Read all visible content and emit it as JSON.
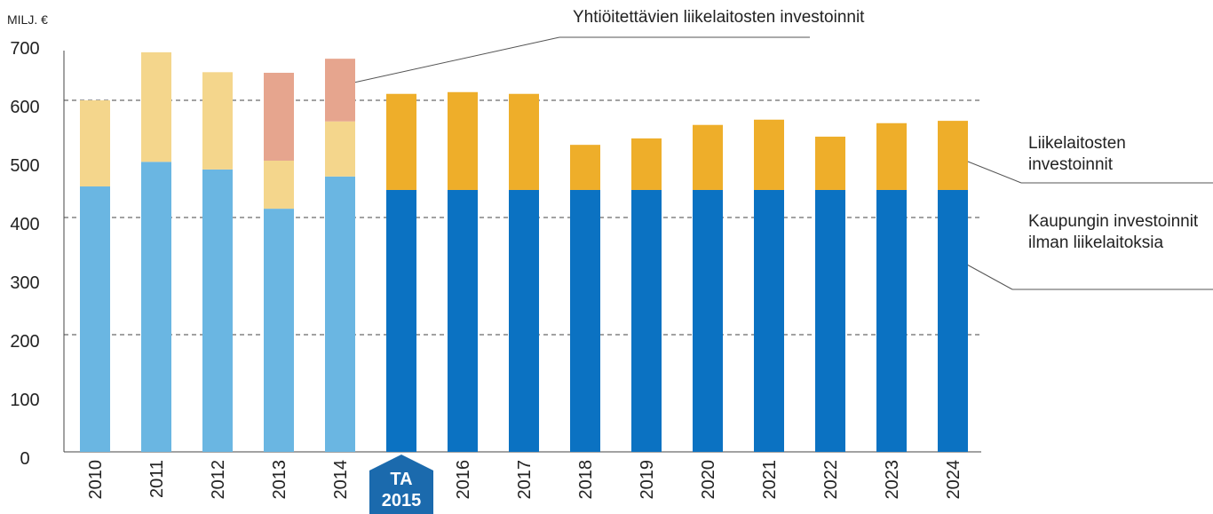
{
  "chart_data": {
    "type": "stacked_bar",
    "y_unit": "MILJ. €",
    "categories": [
      "2010",
      "2011",
      "2012",
      "2013",
      "2014",
      "TA 2015",
      "2016",
      "2017",
      "2018",
      "2019",
      "2020",
      "2021",
      "2022",
      "2023",
      "2024"
    ],
    "series": [
      {
        "name": "Kaupungin investoinnit ilman liikelaitoksia",
        "colors": [
          "#6ab6e2",
          "#6ab6e2",
          "#6ab6e2",
          "#6ab6e2",
          "#6ab6e2",
          "#0b72c2",
          "#0b72c2",
          "#0b72c2",
          "#0b72c2",
          "#0b72c2",
          "#0b72c2",
          "#0b72c2",
          "#0b72c2",
          "#0b72c2",
          "#0b72c2"
        ],
        "values": [
          453,
          495,
          482,
          415,
          470,
          447,
          447,
          447,
          447,
          447,
          447,
          447,
          447,
          447,
          447
        ]
      },
      {
        "name": "Liikelaitosten investoinnit",
        "colors": [
          "#f4d68c",
          "#f4d68c",
          "#f4d68c",
          "#f4d68c",
          "#f4d68c",
          "#eeae2a",
          "#eeae2a",
          "#eeae2a",
          "#eeae2a",
          "#eeae2a",
          "#eeae2a",
          "#eeae2a",
          "#eeae2a",
          "#eeae2a",
          "#eeae2a"
        ],
        "values": [
          147,
          187,
          166,
          82,
          94,
          164,
          167,
          164,
          77,
          88,
          111,
          120,
          91,
          114,
          118
        ]
      },
      {
        "name": "Yhtiöitettävien liikelaitosten investoinnit",
        "colors": [
          "#e6a58e",
          "#e6a58e",
          "#e6a58e",
          "#e6a58e",
          "#e6a58e",
          "#e6a58e",
          "#e6a58e",
          "#e6a58e",
          "#e6a58e",
          "#e6a58e",
          "#e6a58e",
          "#e6a58e",
          "#e6a58e",
          "#e6a58e",
          "#e6a58e"
        ],
        "values": [
          null,
          null,
          null,
          150,
          107,
          null,
          null,
          null,
          null,
          null,
          null,
          null,
          null,
          null,
          null
        ]
      }
    ],
    "ylim": [
      0,
      700
    ],
    "yticks": [
      0,
      100,
      200,
      300,
      400,
      500,
      600,
      700
    ],
    "grid_ticks": [
      200,
      400,
      600
    ]
  }
}
